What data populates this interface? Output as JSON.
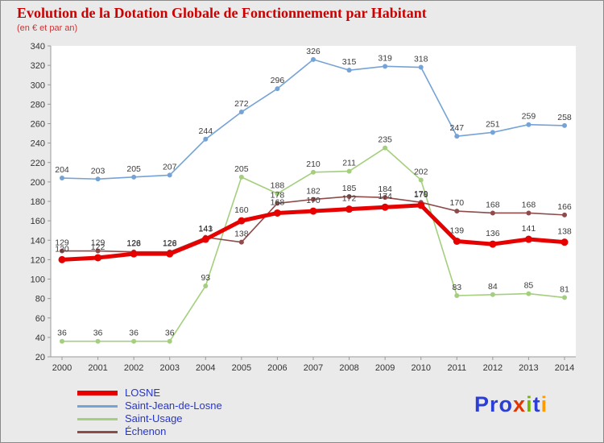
{
  "header": {
    "title": "Evolution de la Dotation Globale de Fonctionnement par Habitant",
    "subtitle": "(en € et par an)"
  },
  "chart_data": {
    "type": "line",
    "title": "Evolution de la Dotation Globale de Fonctionnement par Habitant",
    "subtitle": "(en € et par an)",
    "x": [
      2000,
      2001,
      2002,
      2003,
      2004,
      2005,
      2006,
      2007,
      2008,
      2009,
      2010,
      2011,
      2012,
      2013,
      2014
    ],
    "ylim": [
      20,
      340
    ],
    "ytick_step": 20,
    "grid": false,
    "legend_position": "bottom-left",
    "label_color": "#3b3b3b",
    "series": [
      {
        "name": "LOSNE",
        "color": "#e60000",
        "line_width": 5,
        "marker_radius": 4.5,
        "values": [
          120,
          122,
          126,
          126,
          141,
          160,
          168,
          170,
          172,
          174,
          176,
          139,
          136,
          141,
          138
        ]
      },
      {
        "name": "Saint-Jean-de-Losne",
        "color": "#75a3d7",
        "line_width": 1.6,
        "marker_radius": 3,
        "values": [
          204,
          203,
          205,
          207,
          244,
          272,
          296,
          326,
          315,
          319,
          318,
          247,
          251,
          259,
          258
        ]
      },
      {
        "name": "Saint-Usage",
        "color": "#a4cf7d",
        "line_width": 1.6,
        "marker_radius": 3,
        "values": [
          36,
          36,
          36,
          36,
          93,
          205,
          188,
          210,
          211,
          235,
          202,
          83,
          84,
          85,
          81
        ]
      },
      {
        "name": "Échenon",
        "color": "#8e4b4b",
        "line_width": 1.6,
        "marker_radius": 3,
        "values": [
          129,
          129,
          128,
          128,
          143,
          138,
          178,
          182,
          185,
          184,
          179,
          170,
          168,
          168,
          166
        ]
      }
    ]
  },
  "logo": {
    "text": "Proxiti",
    "letters": [
      {
        "ch": "P",
        "color": "#2b3fd6"
      },
      {
        "ch": "r",
        "color": "#2b3fd6"
      },
      {
        "ch": "o",
        "color": "#2b3fd6"
      },
      {
        "ch": "x",
        "color": "#e43400"
      },
      {
        "ch": "i",
        "color": "#76b900"
      },
      {
        "ch": "t",
        "color": "#2b3fd6"
      },
      {
        "ch": "i",
        "color": "#ff9a00"
      }
    ]
  }
}
